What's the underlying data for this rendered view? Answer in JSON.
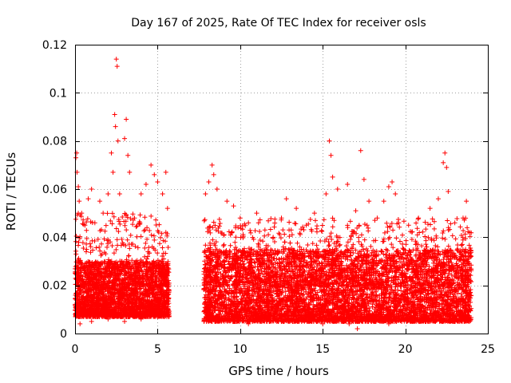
{
  "chart_data": {
    "type": "scatter",
    "title": "Day 167 of 2025, Rate Of TEC Index for receiver osls",
    "xlabel": "GPS time / hours",
    "ylabel": "ROTI / TECUs",
    "xlim": [
      0,
      25
    ],
    "ylim": [
      0,
      0.12
    ],
    "x_ticks": [
      0,
      5,
      10,
      15,
      20,
      25
    ],
    "y_ticks": [
      0,
      0.02,
      0.04,
      0.06,
      0.08,
      0.1,
      0.12
    ],
    "x_tick_labels": [
      "0",
      "5",
      "10",
      "15",
      "20",
      "25"
    ],
    "y_tick_labels": [
      "0",
      "0.02",
      "0.04",
      "0.06",
      "0.08",
      "0.1",
      "0.12"
    ],
    "grid": true,
    "marker": "+",
    "color": "#ff0000",
    "data_gap": [
      5.7,
      7.8
    ],
    "series": [
      {
        "name": "ROTI",
        "points": [
          [
            0.05,
            0.073
          ],
          [
            0.1,
            0.075
          ],
          [
            0.12,
            0.067
          ],
          [
            0.2,
            0.061
          ],
          [
            0.25,
            0.055
          ],
          [
            0.4,
            0.05
          ],
          [
            0.6,
            0.045
          ],
          [
            0.8,
            0.056
          ],
          [
            1.0,
            0.06
          ],
          [
            1.2,
            0.046
          ],
          [
            1.5,
            0.055
          ],
          [
            1.7,
            0.05
          ],
          [
            2.0,
            0.058
          ],
          [
            2.2,
            0.075
          ],
          [
            2.3,
            0.067
          ],
          [
            2.4,
            0.091
          ],
          [
            2.45,
            0.086
          ],
          [
            2.5,
            0.114
          ],
          [
            2.55,
            0.111
          ],
          [
            2.6,
            0.08
          ],
          [
            2.7,
            0.058
          ],
          [
            3.0,
            0.081
          ],
          [
            3.1,
            0.089
          ],
          [
            3.2,
            0.074
          ],
          [
            3.3,
            0.067
          ],
          [
            3.6,
            0.048
          ],
          [
            4.0,
            0.058
          ],
          [
            4.3,
            0.062
          ],
          [
            4.6,
            0.07
          ],
          [
            4.8,
            0.066
          ],
          [
            5.0,
            0.063
          ],
          [
            5.3,
            0.058
          ],
          [
            5.5,
            0.067
          ],
          [
            5.6,
            0.052
          ],
          [
            7.9,
            0.058
          ],
          [
            8.1,
            0.063
          ],
          [
            8.3,
            0.07
          ],
          [
            8.4,
            0.066
          ],
          [
            8.6,
            0.06
          ],
          [
            9.2,
            0.055
          ],
          [
            9.6,
            0.053
          ],
          [
            10.0,
            0.048
          ],
          [
            10.5,
            0.046
          ],
          [
            11.0,
            0.05
          ],
          [
            11.5,
            0.043
          ],
          [
            12.0,
            0.04
          ],
          [
            12.5,
            0.048
          ],
          [
            12.8,
            0.056
          ],
          [
            13.4,
            0.052
          ],
          [
            14.0,
            0.045
          ],
          [
            14.5,
            0.05
          ],
          [
            15.2,
            0.058
          ],
          [
            15.4,
            0.08
          ],
          [
            15.5,
            0.074
          ],
          [
            15.6,
            0.065
          ],
          [
            15.9,
            0.06
          ],
          [
            16.5,
            0.062
          ],
          [
            17.0,
            0.051
          ],
          [
            17.3,
            0.076
          ],
          [
            17.5,
            0.064
          ],
          [
            17.8,
            0.055
          ],
          [
            18.3,
            0.048
          ],
          [
            18.7,
            0.055
          ],
          [
            19.0,
            0.061
          ],
          [
            19.2,
            0.063
          ],
          [
            19.4,
            0.058
          ],
          [
            19.6,
            0.046
          ],
          [
            20.2,
            0.045
          ],
          [
            20.8,
            0.048
          ],
          [
            21.5,
            0.052
          ],
          [
            22.0,
            0.056
          ],
          [
            22.3,
            0.071
          ],
          [
            22.4,
            0.075
          ],
          [
            22.5,
            0.069
          ],
          [
            22.6,
            0.059
          ],
          [
            23.0,
            0.046
          ],
          [
            23.5,
            0.048
          ],
          [
            23.7,
            0.055
          ],
          [
            23.9,
            0.042
          ],
          [
            0.3,
            0.004
          ],
          [
            1.0,
            0.005
          ],
          [
            2.0,
            0.006
          ],
          [
            3.0,
            0.005
          ],
          [
            4.0,
            0.006
          ],
          [
            5.0,
            0.007
          ],
          [
            8.5,
            0.005
          ],
          [
            10.5,
            0.004
          ],
          [
            12.5,
            0.005
          ],
          [
            15.0,
            0.004
          ],
          [
            16.6,
            0.004
          ],
          [
            17.1,
            0.002
          ],
          [
            19.0,
            0.004
          ],
          [
            21.0,
            0.005
          ],
          [
            23.0,
            0.006
          ]
        ],
        "dense_band": [
          {
            "x_range": [
              0.0,
              5.7
            ],
            "y_range": [
              0.007,
              0.03
            ],
            "count": 2600
          },
          {
            "x_range": [
              0.0,
              5.7
            ],
            "y_range": [
              0.02,
              0.05
            ],
            "count": 320
          },
          {
            "x_range": [
              7.8,
              24.0
            ],
            "y_range": [
              0.005,
              0.035
            ],
            "count": 6600
          },
          {
            "x_range": [
              7.8,
              24.0
            ],
            "y_range": [
              0.02,
              0.048
            ],
            "count": 800
          }
        ]
      }
    ]
  }
}
